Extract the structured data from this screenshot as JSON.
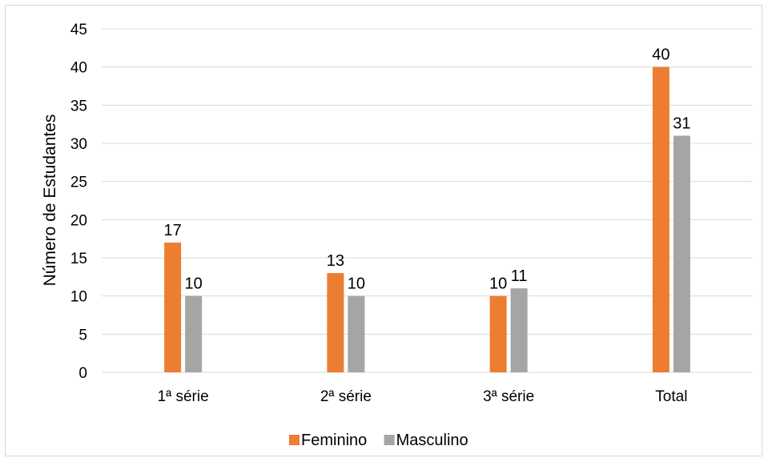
{
  "chart_data": {
    "type": "bar",
    "categories": [
      "1ª série",
      "2ª série",
      "3ª série",
      "Total"
    ],
    "series": [
      {
        "name": "Feminino",
        "values": [
          17,
          13,
          10,
          40
        ],
        "color": "#ED7D31"
      },
      {
        "name": "Masculino",
        "values": [
          10,
          10,
          11,
          31
        ],
        "color": "#A5A5A5"
      }
    ],
    "ylabel": "Número de Estudantes",
    "ylim": [
      0,
      45
    ],
    "yticks": [
      0,
      5,
      10,
      15,
      20,
      25,
      30,
      35,
      40,
      45
    ],
    "grid": true,
    "legend": "bottom",
    "data_labels": true
  }
}
